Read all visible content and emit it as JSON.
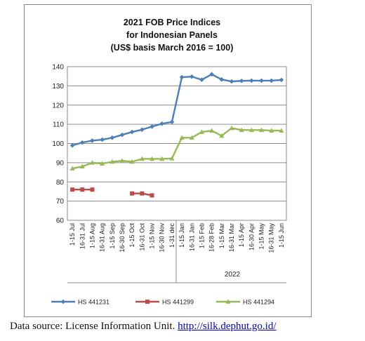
{
  "chart_data": {
    "type": "line",
    "title_lines": [
      "2021 FOB Price Indices",
      "for Indonesian Panels",
      "(US$ basis March 2016 = 100)"
    ],
    "categories": [
      "1-15 Jul",
      "16-31 Jul",
      "1-15 Aug",
      "16-31 Aug",
      "1-15 Sep",
      "16-30 Sep",
      "1-15 Oct",
      "16-31 Oct",
      "1-15 Nov",
      "16-30 Nov",
      "1-31 dec",
      "1-15 Jan",
      "16-31 Jan",
      "1-15 Feb",
      "16-28 Feb",
      "1-15 Mar",
      "16-31 Mar",
      "1-15 Apr",
      "16-30 Apr",
      "1-15 May",
      "16-31 May",
      "1-15 Jun"
    ],
    "group_label": "2022",
    "ylim": [
      60,
      140
    ],
    "yticks": [
      60,
      70,
      80,
      90,
      100,
      110,
      120,
      130,
      140
    ],
    "grid": true,
    "legend_position": "bottom",
    "series": [
      {
        "name": "HS 441231",
        "color": "#4a7ebb",
        "marker": "diamond",
        "values": [
          99,
          100.5,
          101.5,
          102,
          103,
          104.5,
          106,
          107.2,
          108.8,
          110.3,
          111.2,
          134.5,
          134.8,
          133.2,
          136,
          133.3,
          132.3,
          132.6,
          132.7,
          132.7,
          132.7,
          133.1
        ]
      },
      {
        "name": "HS 441299",
        "color": "#be4b48",
        "marker": "square",
        "values": [
          76,
          76,
          76,
          null,
          null,
          null,
          74,
          74,
          73,
          null,
          null,
          null,
          null,
          null,
          null,
          null,
          null,
          null,
          null,
          null,
          null,
          null
        ]
      },
      {
        "name": "HS 441294",
        "color": "#98b954",
        "marker": "triangle",
        "values": [
          87,
          88,
          90,
          89.5,
          90.5,
          91,
          90.5,
          92,
          92,
          92,
          92.2,
          103,
          103,
          106,
          106.7,
          104,
          108,
          107,
          107,
          107,
          106.7,
          106.7
        ]
      }
    ]
  },
  "source": {
    "text": "Data source: License Information Unit.",
    "link": "http://silk.dephut.go.id/"
  }
}
